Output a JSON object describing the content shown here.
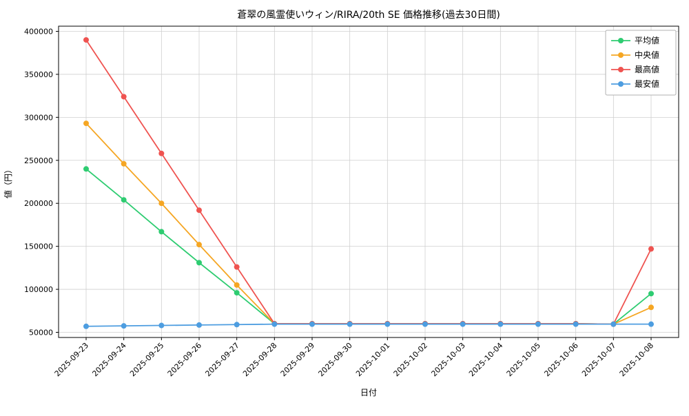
{
  "chart_data": {
    "type": "line",
    "title": "蒼翠の風霊使いウィン/RIRA/20th SE 価格推移(過去30日間)",
    "xlabel": "日付",
    "ylabel": "値（円）",
    "ylim": [
      44000,
      406000
    ],
    "yticks": [
      50000,
      100000,
      150000,
      200000,
      250000,
      300000,
      350000,
      400000
    ],
    "grid": true,
    "legend_position": "upper right",
    "categories": [
      "2025-09-23",
      "2025-09-24",
      "2025-09-25",
      "2025-09-26",
      "2025-09-27",
      "2025-09-28",
      "2025-09-29",
      "2025-09-30",
      "2025-10-01",
      "2025-10-02",
      "2025-10-03",
      "2025-10-04",
      "2025-10-05",
      "2025-10-06",
      "2025-10-07",
      "2025-10-08"
    ],
    "series": [
      {
        "name": "平均値",
        "color": "#2ecc71",
        "values": [
          240000,
          204000,
          167000,
          131000,
          96000,
          60000,
          60000,
          60000,
          60000,
          60000,
          60000,
          60000,
          60000,
          60000,
          59500,
          95000
        ]
      },
      {
        "name": "中央値",
        "color": "#f5a623",
        "values": [
          293000,
          246000,
          200000,
          152000,
          105000,
          60000,
          60000,
          60000,
          60000,
          60000,
          60000,
          60000,
          60000,
          60000,
          59500,
          79000
        ]
      },
      {
        "name": "最高値",
        "color": "#ef5350",
        "values": [
          390000,
          324000,
          258000,
          192000,
          126000,
          60000,
          60000,
          60000,
          60000,
          60000,
          60000,
          60000,
          60000,
          60000,
          59500,
          147000
        ]
      },
      {
        "name": "最安値",
        "color": "#4d9de0",
        "values": [
          57000,
          57500,
          58000,
          58500,
          59000,
          59500,
          59500,
          59500,
          59500,
          59500,
          59500,
          59500,
          59500,
          59500,
          59500,
          59500
        ]
      }
    ]
  }
}
